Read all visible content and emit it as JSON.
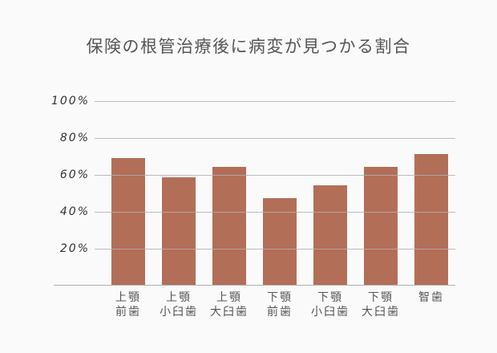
{
  "chart_data": {
    "type": "bar",
    "title": "保険の根管治療後に病変が見つかる割合",
    "xlabel": "",
    "ylabel": "",
    "ylim": [
      0,
      100
    ],
    "grid": true,
    "legend": null,
    "yticks": [
      "20%",
      "40%",
      "60%",
      "80%",
      "100%"
    ],
    "categories": [
      {
        "line1": "上顎",
        "line2": "前歯"
      },
      {
        "line1": "上顎",
        "line2": "小臼歯"
      },
      {
        "line1": "上顎",
        "line2": "大臼歯"
      },
      {
        "line1": "下顎",
        "line2": "前歯"
      },
      {
        "line1": "下顎",
        "line2": "小臼歯"
      },
      {
        "line1": "下顎",
        "line2": "大臼歯"
      },
      {
        "line1": "智歯",
        "line2": ""
      }
    ],
    "category_names": [
      "上顎前歯",
      "上顎小臼歯",
      "上顎大臼歯",
      "下顎前歯",
      "下顎小臼歯",
      "下顎大臼歯",
      "智歯"
    ],
    "values": [
      69,
      58.5,
      64,
      47,
      54,
      64,
      71
    ],
    "colors": {
      "bar": "#b36e58",
      "grid": "#b0b0b0",
      "background": "#fafafa"
    }
  }
}
